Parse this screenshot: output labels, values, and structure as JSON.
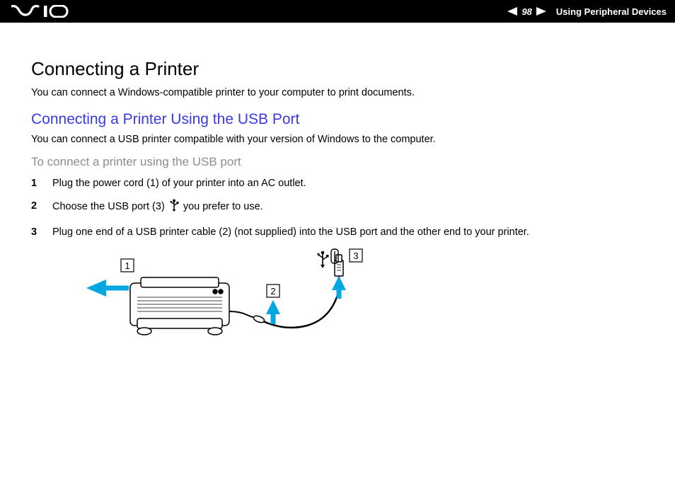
{
  "header": {
    "page_number": "98",
    "section": "Using Peripheral Devices",
    "logo_color": "#ffffff",
    "bg_color": "#000000"
  },
  "content": {
    "title": "Connecting a Printer",
    "intro": "You can connect a Windows-compatible printer to your computer to print documents.",
    "subtitle": "Connecting a Printer Using the USB Port",
    "subtitle_color": "#3a3ae6",
    "sub_intro": "You can connect a USB printer compatible with your version of Windows to the computer.",
    "task_title": "To connect a printer using the USB port",
    "task_title_color": "#8d8d8d",
    "steps": [
      "Plug the power cord (1) of your printer into an AC outlet.",
      "Choose the USB port (3) {USB_ICON} you prefer to use.",
      "Plug one end of a USB printer cable (2) (not supplied) into the USB port and the other end to your printer."
    ]
  },
  "diagram": {
    "type": "infographic",
    "callouts": [
      "1",
      "2",
      "3"
    ],
    "arrow_color": "#00a7e1",
    "callout_border": "#000000",
    "callout_bg": "#ffffff",
    "line_color": "#000000",
    "printer_fill": "#ffffff",
    "printer_stroke": "#000000"
  }
}
